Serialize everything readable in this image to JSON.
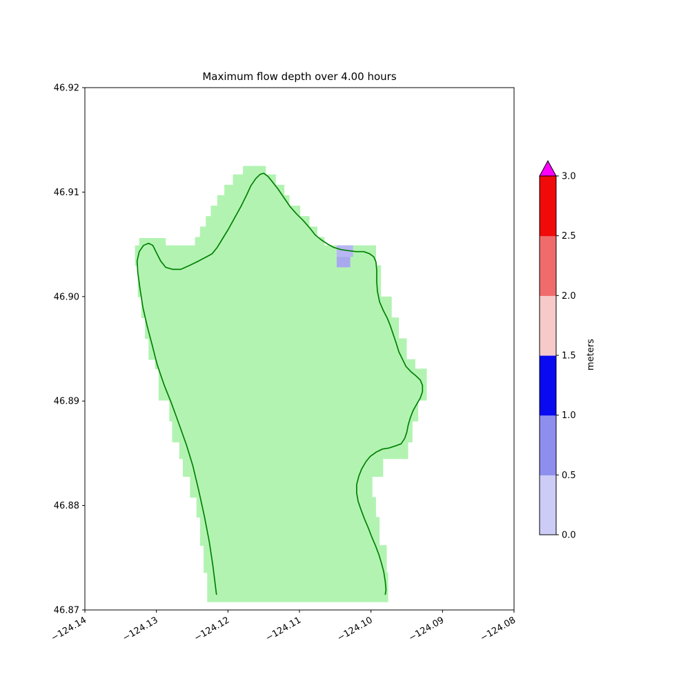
{
  "chart_data": {
    "type": "heatmap",
    "title": "Maximum flow depth over 4.00 hours",
    "xlabel": "",
    "ylabel": "",
    "xlim": [
      -124.14,
      -124.08
    ],
    "ylim": [
      46.87,
      46.92
    ],
    "grid": false,
    "xticks": [
      -124.14,
      -124.13,
      -124.12,
      -124.11,
      -124.1,
      -124.09,
      -124.08
    ],
    "xtick_labels": [
      "−124.14",
      "−124.13",
      "−124.12",
      "−124.11",
      "−124.10",
      "−124.09",
      "−124.08"
    ],
    "yticks": [
      46.92,
      46.91,
      46.9,
      46.89,
      46.88,
      46.87
    ],
    "ytick_labels": [
      "46.92",
      "46.91",
      "46.90",
      "46.89",
      "46.88",
      "46.87"
    ],
    "region": {
      "name": "inundation-grid-region",
      "color": "#b2f3b2",
      "slabs": [
        [
          -124.1179,
          -124.1147,
          46.9125,
          46.9117
        ],
        [
          -124.1193,
          -124.1133,
          46.9117,
          46.9107
        ],
        [
          -124.1205,
          -124.1121,
          46.9107,
          46.9097
        ],
        [
          -124.1215,
          -124.1114,
          46.9097,
          46.9087
        ],
        [
          -124.1224,
          -124.1099,
          46.9087,
          46.9077
        ],
        [
          -124.1231,
          -124.1086,
          46.9077,
          46.9067
        ],
        [
          -124.1239,
          -124.1075,
          46.9067,
          46.9057
        ],
        [
          -124.1246,
          -124.1065,
          46.9057,
          46.9049
        ],
        [
          -124.1324,
          -124.1287,
          46.9056,
          46.9049
        ],
        [
          -124.133,
          -124.0993,
          46.9049,
          46.903
        ],
        [
          -124.1326,
          -124.0986,
          46.903,
          46.9
        ],
        [
          -124.1321,
          -124.0971,
          46.9,
          46.898
        ],
        [
          -124.1316,
          -124.0961,
          46.898,
          46.896
        ],
        [
          -124.1311,
          -124.095,
          46.896,
          46.894
        ],
        [
          -124.1302,
          -124.0938,
          46.894,
          46.8931
        ],
        [
          -124.1297,
          -124.0922,
          46.8931,
          46.8901
        ],
        [
          -124.1282,
          -124.0934,
          46.8901,
          46.8881
        ],
        [
          -124.1278,
          -124.0942,
          46.8881,
          46.8861
        ],
        [
          -124.1268,
          -124.0948,
          46.8861,
          46.8845
        ],
        [
          -124.1263,
          -124.0983,
          46.8845,
          46.8828
        ],
        [
          -124.1253,
          -124.0998,
          46.8828,
          46.8808
        ],
        [
          -124.1244,
          -124.0993,
          46.8808,
          46.8789
        ],
        [
          -124.1239,
          -124.0988,
          46.8789,
          46.8762
        ],
        [
          -124.1234,
          -124.0978,
          46.8762,
          46.8736
        ],
        [
          -124.1229,
          -124.0976,
          46.8736,
          46.8708
        ]
      ]
    },
    "cells": [
      {
        "lon0": -124.1048,
        "lon1": -124.1025,
        "lat0": 46.9049,
        "lat1": 46.9038,
        "value_range": "0.0-0.5",
        "color": "#b7b7f3"
      },
      {
        "lon0": -124.1048,
        "lon1": -124.1029,
        "lat0": 46.9038,
        "lat1": 46.9028,
        "value_range": "0.0-0.5",
        "color": "#a8a8ef"
      }
    ],
    "coastline": {
      "name": "shoreline",
      "color": "#008000",
      "points": [
        [
          -124.1216,
          46.8715
        ],
        [
          -124.1221,
          46.8742
        ],
        [
          -124.1226,
          46.8765
        ],
        [
          -124.1233,
          46.879
        ],
        [
          -124.1241,
          46.8815
        ],
        [
          -124.1249,
          46.8838
        ],
        [
          -124.1258,
          46.8858
        ],
        [
          -124.127,
          46.8881
        ],
        [
          -124.1279,
          46.8898
        ],
        [
          -124.1289,
          46.8915
        ],
        [
          -124.1299,
          46.8935
        ],
        [
          -124.1306,
          46.8954
        ],
        [
          -124.1313,
          46.8972
        ],
        [
          -124.1319,
          46.899
        ],
        [
          -124.1323,
          46.9008
        ],
        [
          -124.1326,
          46.9023
        ],
        [
          -124.1327,
          46.9034
        ],
        [
          -124.1324,
          46.9043
        ],
        [
          -124.1318,
          46.9049
        ],
        [
          -124.1311,
          46.9051
        ],
        [
          -124.1305,
          46.9049
        ],
        [
          -124.13,
          46.9042
        ],
        [
          -124.1294,
          46.9034
        ],
        [
          -124.1287,
          46.9028
        ],
        [
          -124.1277,
          46.9026
        ],
        [
          -124.1266,
          46.9026
        ],
        [
          -124.1253,
          46.903
        ],
        [
          -124.1241,
          46.9034
        ],
        [
          -124.123,
          46.9038
        ],
        [
          -124.1222,
          46.9041
        ],
        [
          -124.1215,
          46.9047
        ],
        [
          -124.1207,
          46.9056
        ],
        [
          -124.1199,
          46.9065
        ],
        [
          -124.1191,
          46.9075
        ],
        [
          -124.1182,
          46.9086
        ],
        [
          -124.1174,
          46.9097
        ],
        [
          -124.1168,
          46.9106
        ],
        [
          -124.1161,
          46.9113
        ],
        [
          -124.1155,
          46.9117
        ],
        [
          -124.115,
          46.9118
        ],
        [
          -124.1144,
          46.9115
        ],
        [
          -124.1138,
          46.911
        ],
        [
          -124.113,
          46.9103
        ],
        [
          -124.1121,
          46.9094
        ],
        [
          -124.1113,
          46.9086
        ],
        [
          -124.1104,
          46.9079
        ],
        [
          -124.1095,
          46.9073
        ],
        [
          -124.1086,
          46.9066
        ],
        [
          -124.1078,
          46.9059
        ],
        [
          -124.1069,
          46.9054
        ],
        [
          -124.106,
          46.905
        ],
        [
          -124.1052,
          46.9047
        ],
        [
          -124.1042,
          46.9045
        ],
        [
          -124.1032,
          46.9044
        ],
        [
          -124.1021,
          46.9043
        ],
        [
          -124.101,
          46.9043
        ],
        [
          -124.1002,
          46.9041
        ],
        [
          -124.0996,
          46.9038
        ],
        [
          -124.0993,
          46.9033
        ],
        [
          -124.0992,
          46.9025
        ],
        [
          -124.0992,
          46.9014
        ],
        [
          -124.0991,
          46.9005
        ],
        [
          -124.0988,
          46.8995
        ],
        [
          -124.0983,
          46.8987
        ],
        [
          -124.0977,
          46.8979
        ],
        [
          -124.0973,
          46.8972
        ],
        [
          -124.0969,
          46.8964
        ],
        [
          -124.0965,
          46.8956
        ],
        [
          -124.0961,
          46.8947
        ],
        [
          -124.0956,
          46.894
        ],
        [
          -124.0951,
          46.8933
        ],
        [
          -124.0944,
          46.8928
        ],
        [
          -124.0937,
          46.8924
        ],
        [
          -124.0931,
          46.892
        ],
        [
          -124.0928,
          46.8915
        ],
        [
          -124.0928,
          46.8909
        ],
        [
          -124.0931,
          46.8903
        ],
        [
          -124.0936,
          46.8897
        ],
        [
          -124.0941,
          46.8891
        ],
        [
          -124.0945,
          46.8884
        ],
        [
          -124.0948,
          46.8877
        ],
        [
          -124.095,
          46.887
        ],
        [
          -124.0953,
          46.8864
        ],
        [
          -124.0958,
          46.8859
        ],
        [
          -124.0966,
          46.8857
        ],
        [
          -124.0975,
          46.8855
        ],
        [
          -124.0984,
          46.8854
        ],
        [
          -124.0993,
          46.8851
        ],
        [
          -124.1001,
          46.8847
        ],
        [
          -124.1007,
          46.8842
        ],
        [
          -124.1013,
          46.8835
        ],
        [
          -124.1017,
          46.8828
        ],
        [
          -124.102,
          46.882
        ],
        [
          -124.102,
          46.8812
        ],
        [
          -124.1018,
          46.8804
        ],
        [
          -124.1014,
          46.8796
        ],
        [
          -124.1009,
          46.8787
        ],
        [
          -124.1004,
          46.8779
        ],
        [
          -124.0999,
          46.877
        ],
        [
          -124.0994,
          46.8762
        ],
        [
          -124.0989,
          46.8753
        ],
        [
          -124.0985,
          46.8744
        ],
        [
          -124.0982,
          46.8736
        ],
        [
          -124.098,
          46.8727
        ],
        [
          -124.0979,
          46.8719
        ],
        [
          -124.098,
          46.8715
        ]
      ]
    },
    "colorbar": {
      "label": "meters",
      "ticks": [
        0.0,
        0.5,
        1.0,
        1.5,
        2.0,
        2.5,
        3.0
      ],
      "tick_labels": [
        "0.0",
        "0.5",
        "1.0",
        "1.5",
        "2.0",
        "2.5",
        "3.0"
      ],
      "bin_colors": [
        "#ccccf7",
        "#8e8eef",
        "#0a0af0",
        "#f7caca",
        "#f06c6c",
        "#f00a0a"
      ],
      "over_color": "#ff00ff",
      "extend": "max",
      "position": "right"
    }
  }
}
